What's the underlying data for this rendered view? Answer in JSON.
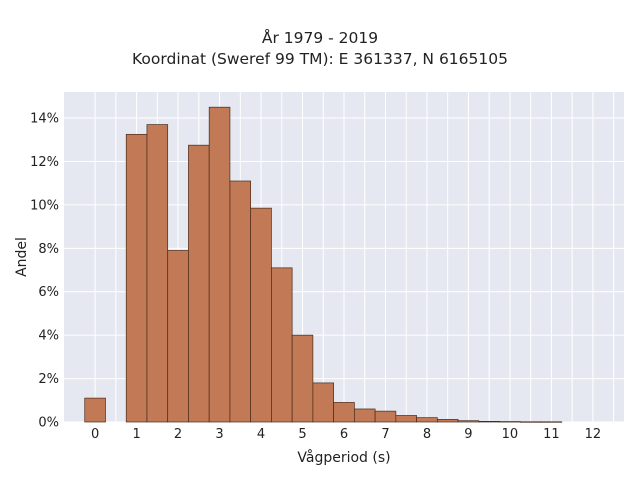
{
  "chart_data": {
    "type": "bar",
    "title": "År 1979 - 2019",
    "subtitle": "Koordinat (Sweref 99 TM): E 361337, N 6165105",
    "xlabel": "Vågperiod (s)",
    "ylabel": "Andel",
    "xlim": [
      -0.75,
      12.75
    ],
    "ylim": [
      0,
      0.152
    ],
    "bin_width": 0.5,
    "x_ticks": [
      0,
      1,
      2,
      3,
      4,
      5,
      6,
      7,
      8,
      9,
      10,
      11,
      12
    ],
    "x_tick_labels": [
      "0",
      "1",
      "2",
      "3",
      "4",
      "5",
      "6",
      "7",
      "8",
      "9",
      "10",
      "11",
      "12"
    ],
    "y_ticks": [
      0,
      0.02,
      0.04,
      0.06,
      0.08,
      0.1,
      0.12,
      0.14
    ],
    "y_tick_labels": [
      "0%",
      "2%",
      "4%",
      "6%",
      "8%",
      "10%",
      "12%",
      "14%"
    ],
    "bin_starts": [
      -0.25,
      0.75,
      1.25,
      1.75,
      2.25,
      2.75,
      3.25,
      3.75,
      4.25,
      4.75,
      5.25,
      5.75,
      6.25,
      6.75,
      7.25,
      7.75,
      8.25,
      8.75,
      9.25,
      9.75,
      10.25,
      10.75,
      11.25
    ],
    "values": [
      0.011,
      0.1325,
      0.137,
      0.079,
      0.1275,
      0.145,
      0.111,
      0.0985,
      0.071,
      0.04,
      0.018,
      0.009,
      0.006,
      0.005,
      0.003,
      0.002,
      0.0012,
      0.0006,
      0.0003,
      0.0002,
      0.0001,
      0.0001,
      0.0
    ],
    "grid": true,
    "colors": {
      "bar_fill": "#c17a55",
      "bar_edge": "#4a2a1a",
      "plot_bg": "#e5e8f0",
      "grid": "#ffffff"
    }
  }
}
